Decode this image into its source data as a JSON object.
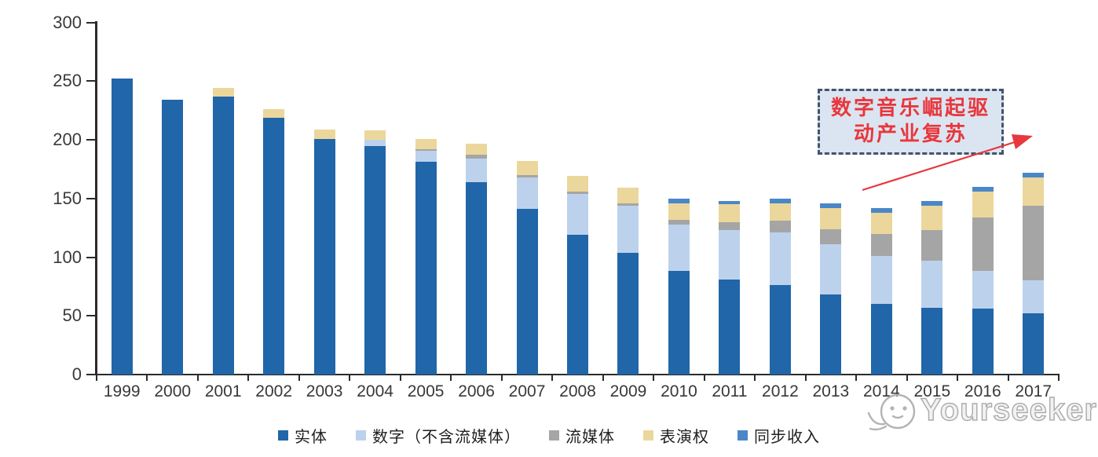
{
  "chart_data": {
    "type": "bar",
    "stacked": true,
    "title": "",
    "xlabel": "",
    "ylabel": "",
    "categories": [
      "1999",
      "2000",
      "2001",
      "2002",
      "2003",
      "2004",
      "2005",
      "2006",
      "2007",
      "2008",
      "2009",
      "2010",
      "2011",
      "2012",
      "2013",
      "2014",
      "2015",
      "2016",
      "2017"
    ],
    "series": [
      {
        "name": "实体",
        "color": "#2066A9",
        "values": [
          252,
          234,
          237,
          219,
          201,
          195,
          181,
          164,
          141,
          119,
          104,
          88,
          81,
          76,
          68,
          60,
          57,
          56,
          52
        ]
      },
      {
        "name": "数字（不含流媒体）",
        "color": "#BCD2EC",
        "values": [
          0,
          0,
          0,
          0,
          0,
          5,
          10,
          20,
          27,
          35,
          40,
          40,
          42,
          45,
          43,
          41,
          40,
          32,
          28
        ]
      },
      {
        "name": "流媒体",
        "color": "#A6A5A5",
        "values": [
          0,
          0,
          0,
          0,
          0,
          0,
          1,
          3,
          2,
          2,
          2,
          4,
          7,
          10,
          13,
          19,
          26,
          46,
          64
        ]
      },
      {
        "name": "表演权",
        "color": "#EBD79B",
        "values": [
          0,
          0,
          7,
          7,
          8,
          8,
          9,
          10,
          12,
          13,
          13,
          14,
          15,
          15,
          18,
          18,
          21,
          22,
          24
        ]
      },
      {
        "name": "同步收入",
        "color": "#4A87C8",
        "values": [
          0,
          0,
          0,
          0,
          0,
          0,
          0,
          0,
          0,
          0,
          0,
          4,
          3,
          4,
          4,
          4,
          4,
          4,
          4
        ]
      }
    ],
    "ylim": [
      0,
      300
    ],
    "y_ticks": [
      0,
      50,
      100,
      150,
      200,
      250,
      300
    ],
    "grid": false,
    "legend_position": "bottom"
  },
  "annotation": {
    "lines": [
      "数字音乐崛起驱",
      "动产业复苏"
    ],
    "text_color": "#e8373d",
    "border_color": "#44546A",
    "fill_color": "#dbe5f1",
    "arrow_color": "#e8373d"
  },
  "watermark": {
    "text": "Yourseeker"
  }
}
